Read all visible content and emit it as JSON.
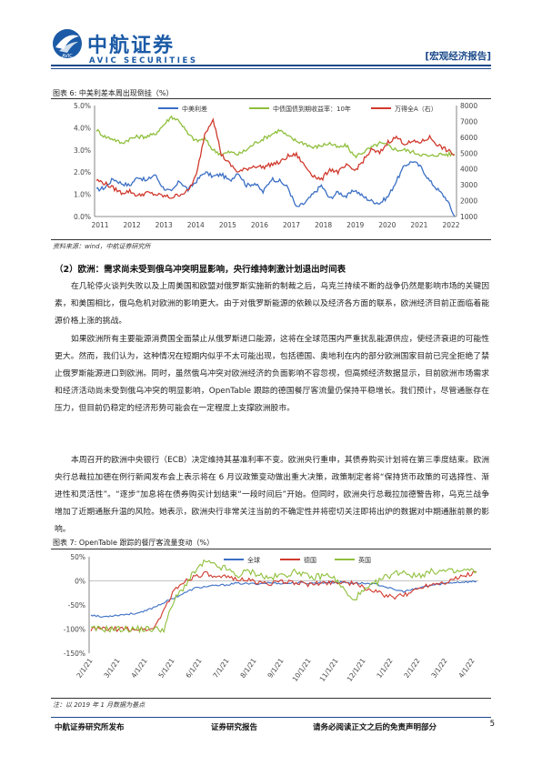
{
  "header": {
    "brand_cn": "中航证券",
    "brand_en": "AVIC SECURITIES",
    "report_type": "[宏观经济报告]",
    "logo_mark": "AVIC"
  },
  "figure6": {
    "title": "图表 6: 中美利差本周出现倒挂（%）",
    "source": "资料来源：wind，中航证券研究所",
    "chart_data": {
      "type": "line",
      "x_ticks": [
        "2011",
        "2012",
        "2013",
        "2014",
        "2015",
        "2016",
        "2017",
        "2018",
        "2019",
        "2020",
        "2021",
        "2022"
      ],
      "y_left_ticks": [
        "0.0%",
        "1.0%",
        "2.0%",
        "3.0%",
        "4.0%",
        "5.0%"
      ],
      "y_right_ticks": [
        "1000",
        "2000",
        "3000",
        "4000",
        "5000",
        "6000",
        "7000",
        "8000"
      ],
      "y_left_range": [
        0,
        5
      ],
      "y_right_range": [
        1000,
        8000
      ],
      "series": [
        {
          "name": "中美利差",
          "color": "#3b6fc4",
          "axis": "left",
          "values": [
            1.2,
            1.3,
            1.7,
            1.5,
            1.4,
            1.8,
            1.6,
            1.9,
            1.3,
            1.1,
            1.6,
            1.2,
            1.6,
            2.0,
            1.8,
            1.9,
            1.6,
            2.0,
            1.4,
            1.5,
            1.1,
            1.7,
            1.6,
            1.3,
            0.4,
            0.6,
            1.0,
            1.4,
            0.8,
            1.1,
            0.9,
            1.2,
            0.9,
            0.7,
            0.6,
            0.9,
            1.6,
            2.3,
            2.5,
            2.2,
            1.6,
            1.2,
            0.8,
            0.0
          ]
        },
        {
          "name": "中债国债到期收益率：10年",
          "color": "#8fbf3c",
          "axis": "left",
          "values": [
            3.9,
            3.6,
            3.5,
            3.3,
            3.5,
            3.6,
            3.6,
            3.7,
            4.1,
            4.5,
            4.3,
            3.7,
            3.4,
            3.5,
            3.0,
            2.8,
            2.9,
            2.8,
            3.0,
            3.3,
            3.5,
            3.7,
            3.9,
            3.6,
            3.4,
            3.3,
            3.1,
            3.2,
            3.3,
            3.1,
            3.2,
            2.7,
            2.9,
            3.1,
            3.3,
            3.2,
            3.0,
            3.0,
            2.9,
            2.8,
            2.7,
            2.8,
            2.8,
            2.8
          ]
        },
        {
          "name": "万得全A（右）",
          "color": "#d03a2e",
          "axis": "right",
          "values": [
            3300,
            3100,
            2800,
            2500,
            2600,
            2300,
            2500,
            2400,
            2300,
            2200,
            2400,
            2600,
            3600,
            6200,
            7200,
            4900,
            4300,
            3800,
            4000,
            4200,
            4100,
            4300,
            4400,
            4800,
            4900,
            4200,
            3600,
            3300,
            4000,
            3800,
            4200,
            3900,
            4500,
            5200,
            5000,
            5700,
            6000,
            5600,
            5700,
            5700,
            6000,
            5500,
            5200,
            4900
          ]
        }
      ],
      "grid": false,
      "legend": "top"
    }
  },
  "section": {
    "heading": "（2）欧洲：需求尚未受到俄乌冲突明显影响，央行维持刺激计划退出时间表"
  },
  "paragraphs": [
    "在几轮停火谈判失败以及上周美国和欧盟对俄罗斯实施新的制裁之后，乌克兰持续不断的战争仍然是影响市场的关键因素，和美国相比，俄乌危机对欧洲的影响更大。由于对俄罗斯能源的依赖以及经济各方面的联系，欧洲经济目前正面临着能源价格上涨的挑战。",
    "如果欧洲所有主要能源消费国全面禁止从俄罗斯进口能源，这将在全球范围内严重扰乱能源供应，使经济衰退的可能性更大。然而，我们认为，这种情况在短期内似乎不太可能出现，包括德国、奥地利在内的部分欧洲国家目前已完全拒绝了禁止俄罗斯能源进口到欧洲。同时，虽然俄乌冲突对欧洲经济的负面影响不容忽视，但高频经济数据显示，目前欧洲市场需求和经济活动尚未受到俄乌冲突的明显影响，OpenTable 跟踪的德国餐厅客流量仍保持平稳增长。我们预计，尽管通胀存在压力，但目前仍稳定的经济形势可能会在一定程度上支撑欧洲股市。",
    "本周召开的欧洲中央银行（ECB）决定维持其基准利率不变。欧洲央行重申，其债券购买计划将在第三季度结束。欧洲央行总裁拉加德在例行新闻发布会上表示将在 6 月议政策变动做出重大决策，政策制定者将“保持货币政策的可选择性、渐进性和灵活性”。“逐步”加息将在债券购买计划结束“一段时间后”开始。但同时，欧洲央行总裁拉加德警告称，乌克兰战争增加了近期通胀升温的风险。她表示，欧洲央行非常关注当前的不确定性并将密切关注即将出炉的数据对中期通胀前景的影响。"
  ],
  "figure7": {
    "title": "图表 7: OpenTable 跟踪的餐厅客流量变动（%）",
    "note": "注：以 2019 年 1 月数据为基点",
    "chart_data": {
      "type": "line",
      "x_ticks": [
        "2/1/21",
        "3/1/21",
        "4/1/21",
        "5/1/21",
        "6/1/21",
        "7/1/21",
        "8/1/21",
        "9/1/21",
        "10/1/21",
        "11/1/21",
        "12/1/21",
        "1/1/22",
        "2/1/22",
        "3/1/22",
        "4/1/22"
      ],
      "y_ticks": [
        "50%",
        "0%",
        "-50%",
        "-100%",
        "-150%"
      ],
      "y_range": [
        -150,
        50
      ],
      "series": [
        {
          "name": "全球",
          "color": "#3b6fc4",
          "values": [
            -70,
            -75,
            -72,
            -70,
            -68,
            -65,
            -55,
            -45,
            -35,
            -25,
            -15,
            -12,
            -10,
            -8,
            -5,
            -6,
            -6,
            -4,
            -5,
            -5,
            -4,
            -5,
            -4,
            -3,
            -3,
            -4,
            -5,
            -6,
            -10,
            -18,
            -22,
            -18,
            -12,
            -8,
            -5,
            -3,
            -2,
            -1
          ]
        },
        {
          "name": "德国",
          "color": "#d03a2e",
          "values": [
            -100,
            -100,
            -100,
            -100,
            -100,
            -100,
            -100,
            -60,
            -20,
            0,
            10,
            15,
            5,
            8,
            5,
            2,
            -3,
            -5,
            -3,
            -2,
            -4,
            -8,
            -5,
            -3,
            -2,
            -5,
            -12,
            -20,
            -28,
            -35,
            -30,
            -20,
            -10,
            -5,
            -2,
            5,
            12,
            18
          ]
        },
        {
          "name": "英国",
          "color": "#8fbf3c",
          "values": [
            -100,
            -100,
            -100,
            -100,
            -100,
            -100,
            -100,
            -100,
            -40,
            -10,
            20,
            40,
            30,
            25,
            10,
            20,
            15,
            5,
            10,
            15,
            20,
            5,
            10,
            12,
            -10,
            -40,
            -25,
            -10,
            5,
            15,
            20,
            10,
            15,
            20,
            20,
            18,
            22,
            20
          ]
        }
      ],
      "legend": "top",
      "grid": false
    }
  },
  "footer": {
    "left": "中航证券研究所发布",
    "center": "证券研究报告",
    "right": "请务必阅读正文之后的免责声明部分",
    "page": "5"
  }
}
